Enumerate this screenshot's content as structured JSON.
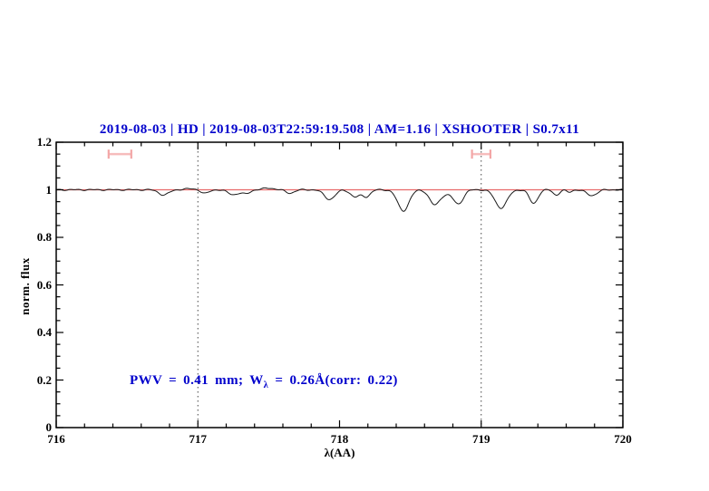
{
  "chart_data": {
    "type": "line",
    "title": "2019-08-03 | HD | 2019-08-03T22:59:19.508 | AM=1.16 | XSHOOTER | S0.7x11",
    "xlabel": "λ(AA)",
    "ylabel": "norm. flux",
    "xlim": [
      716,
      720
    ],
    "ylim": [
      0,
      1.2
    ],
    "x_tick_values": [
      716,
      717,
      718,
      719,
      720
    ],
    "x_tick_labels": [
      "716",
      "717",
      "718",
      "719",
      "720"
    ],
    "x_minor_step": 0.2,
    "y_tick_values": [
      0,
      0.2,
      0.4,
      0.6,
      0.8,
      1.0,
      1.2
    ],
    "y_tick_labels": [
      "0",
      "0.2",
      "0.4",
      "0.6",
      "0.8",
      "1",
      "1.2"
    ],
    "y_minor_step": 0.05,
    "grid": "off",
    "vertical_dotted_lines": [
      717,
      719
    ],
    "colors": {
      "title": "#0000cc",
      "annotation": "#0000cc",
      "spectrum": "#1a1a1a",
      "continuum": "#e86a6a",
      "region_marker": "#f3a6a6",
      "axis": "#000000",
      "dotted_line": "#444444"
    },
    "continuum": {
      "y": 1.0
    },
    "spectrum": {
      "continuum_level": 1.0,
      "sample_step": 0.005,
      "noise_amplitude": 0.0032,
      "absorption_features": [
        {
          "center": 716.95,
          "depth": -0.004,
          "sigma": 0.05
        },
        {
          "center": 716.76,
          "depth": 0.022,
          "sigma": 0.035
        },
        {
          "center": 717.05,
          "depth": 0.016,
          "sigma": 0.028
        },
        {
          "center": 717.25,
          "depth": 0.02,
          "sigma": 0.038
        },
        {
          "center": 717.34,
          "depth": 0.016,
          "sigma": 0.028
        },
        {
          "center": 717.5,
          "depth": -0.007,
          "sigma": 0.04
        },
        {
          "center": 717.65,
          "depth": 0.014,
          "sigma": 0.03
        },
        {
          "center": 717.93,
          "depth": 0.04,
          "sigma": 0.038
        },
        {
          "center": 718.11,
          "depth": 0.03,
          "sigma": 0.032
        },
        {
          "center": 718.19,
          "depth": 0.028,
          "sigma": 0.028
        },
        {
          "center": 718.45,
          "depth": 0.088,
          "sigma": 0.04
        },
        {
          "center": 718.67,
          "depth": 0.06,
          "sigma": 0.036
        },
        {
          "center": 718.755,
          "depth": 0.015,
          "sigma": 0.05
        },
        {
          "center": 718.84,
          "depth": 0.056,
          "sigma": 0.034
        },
        {
          "center": 719.14,
          "depth": 0.076,
          "sigma": 0.042
        },
        {
          "center": 719.37,
          "depth": 0.057,
          "sigma": 0.03
        },
        {
          "center": 719.53,
          "depth": 0.022,
          "sigma": 0.022
        },
        {
          "center": 719.62,
          "depth": 0.01,
          "sigma": 0.02
        },
        {
          "center": 719.78,
          "depth": 0.024,
          "sigma": 0.036
        }
      ]
    },
    "region_markers": {
      "y": 1.15,
      "items": [
        {
          "center": 716.45,
          "half_width": 0.08
        },
        {
          "center": 719.0,
          "half_width": 0.065
        }
      ]
    },
    "annotation": {
      "parts": {
        "pre": "PWV = 0.41 mm; W",
        "sub": "λ",
        "post": " = 0.26Å(corr: 0.22)"
      },
      "x": 716.53,
      "y": 0.2
    }
  }
}
